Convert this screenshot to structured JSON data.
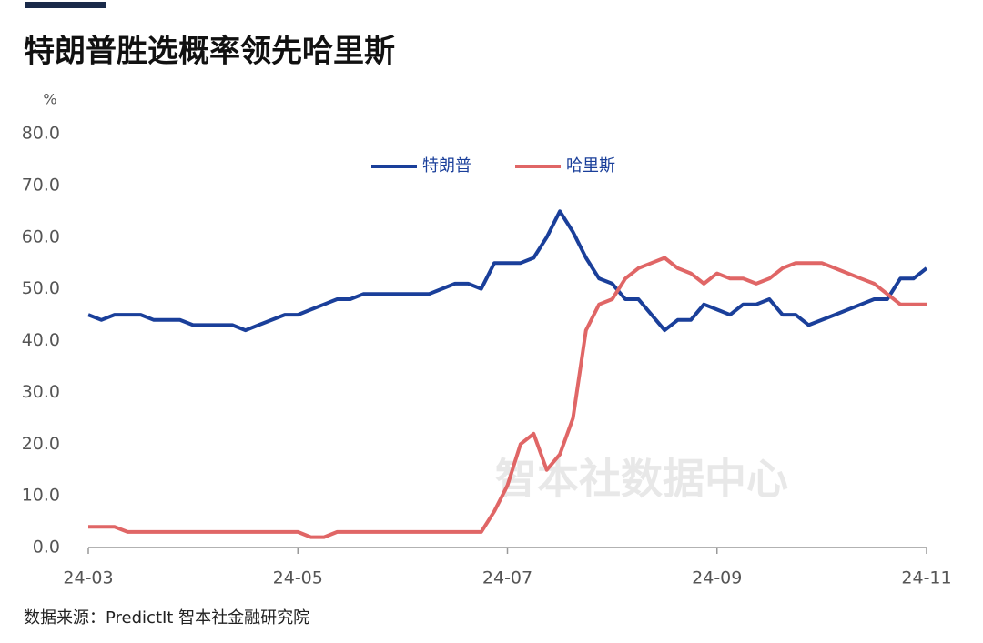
{
  "chart_data": {
    "type": "line",
    "title": "特朗普胜选概率领先哈里斯",
    "y_label": "%",
    "source": "数据来源：PredictIt 智本社金融研究院",
    "watermark": "智本社数据中心",
    "categories": [
      "24-03",
      null,
      null,
      null,
      null,
      null,
      null,
      null,
      null,
      null,
      null,
      null,
      null,
      null,
      null,
      null,
      "24-05",
      null,
      null,
      null,
      null,
      null,
      null,
      null,
      null,
      null,
      null,
      null,
      null,
      null,
      null,
      null,
      "24-07",
      null,
      null,
      null,
      null,
      null,
      null,
      null,
      null,
      null,
      null,
      null,
      null,
      null,
      null,
      null,
      "24-09",
      null,
      null,
      null,
      null,
      null,
      null,
      null,
      null,
      null,
      null,
      null,
      null,
      null,
      null,
      null,
      "24-11"
    ],
    "series": [
      {
        "name": "特朗普",
        "color": "#1a3f9a",
        "values": [
          45,
          44,
          45,
          45,
          45,
          44,
          44,
          44,
          43,
          43,
          43,
          43,
          42,
          43,
          44,
          45,
          45,
          46,
          47,
          48,
          48,
          49,
          49,
          49,
          49,
          49,
          49,
          50,
          51,
          51,
          50,
          55,
          55,
          55,
          56,
          60,
          65,
          61,
          56,
          52,
          51,
          48,
          48,
          45,
          42,
          44,
          44,
          47,
          46,
          45,
          47,
          47,
          48,
          45,
          45,
          43,
          44,
          45,
          46,
          47,
          48,
          48,
          52,
          52,
          54
        ]
      },
      {
        "name": "哈里斯",
        "color": "#e06666",
        "values": [
          4,
          4,
          4,
          3,
          3,
          3,
          3,
          3,
          3,
          3,
          3,
          3,
          3,
          3,
          3,
          3,
          3,
          2,
          2,
          3,
          3,
          3,
          3,
          3,
          3,
          3,
          3,
          3,
          3,
          3,
          3,
          7,
          12,
          20,
          22,
          15,
          18,
          25,
          42,
          47,
          48,
          52,
          54,
          55,
          56,
          54,
          53,
          51,
          53,
          52,
          52,
          51,
          52,
          54,
          55,
          55,
          55,
          54,
          53,
          52,
          51,
          49,
          47,
          47,
          47
        ]
      }
    ],
    "ylim": [
      0,
      80
    ],
    "yticks": [
      {
        "value": 0,
        "label": "0.0"
      },
      {
        "value": 10,
        "label": "10.0"
      },
      {
        "value": 20,
        "label": "20.0"
      },
      {
        "value": 30,
        "label": "30.0"
      },
      {
        "value": 40,
        "label": "40.0"
      },
      {
        "value": 50,
        "label": "50.0"
      },
      {
        "value": 60,
        "label": "60.0"
      },
      {
        "value": 70,
        "label": "70.0"
      },
      {
        "value": 80,
        "label": "80.0"
      }
    ],
    "grid": false,
    "legend": "top"
  }
}
